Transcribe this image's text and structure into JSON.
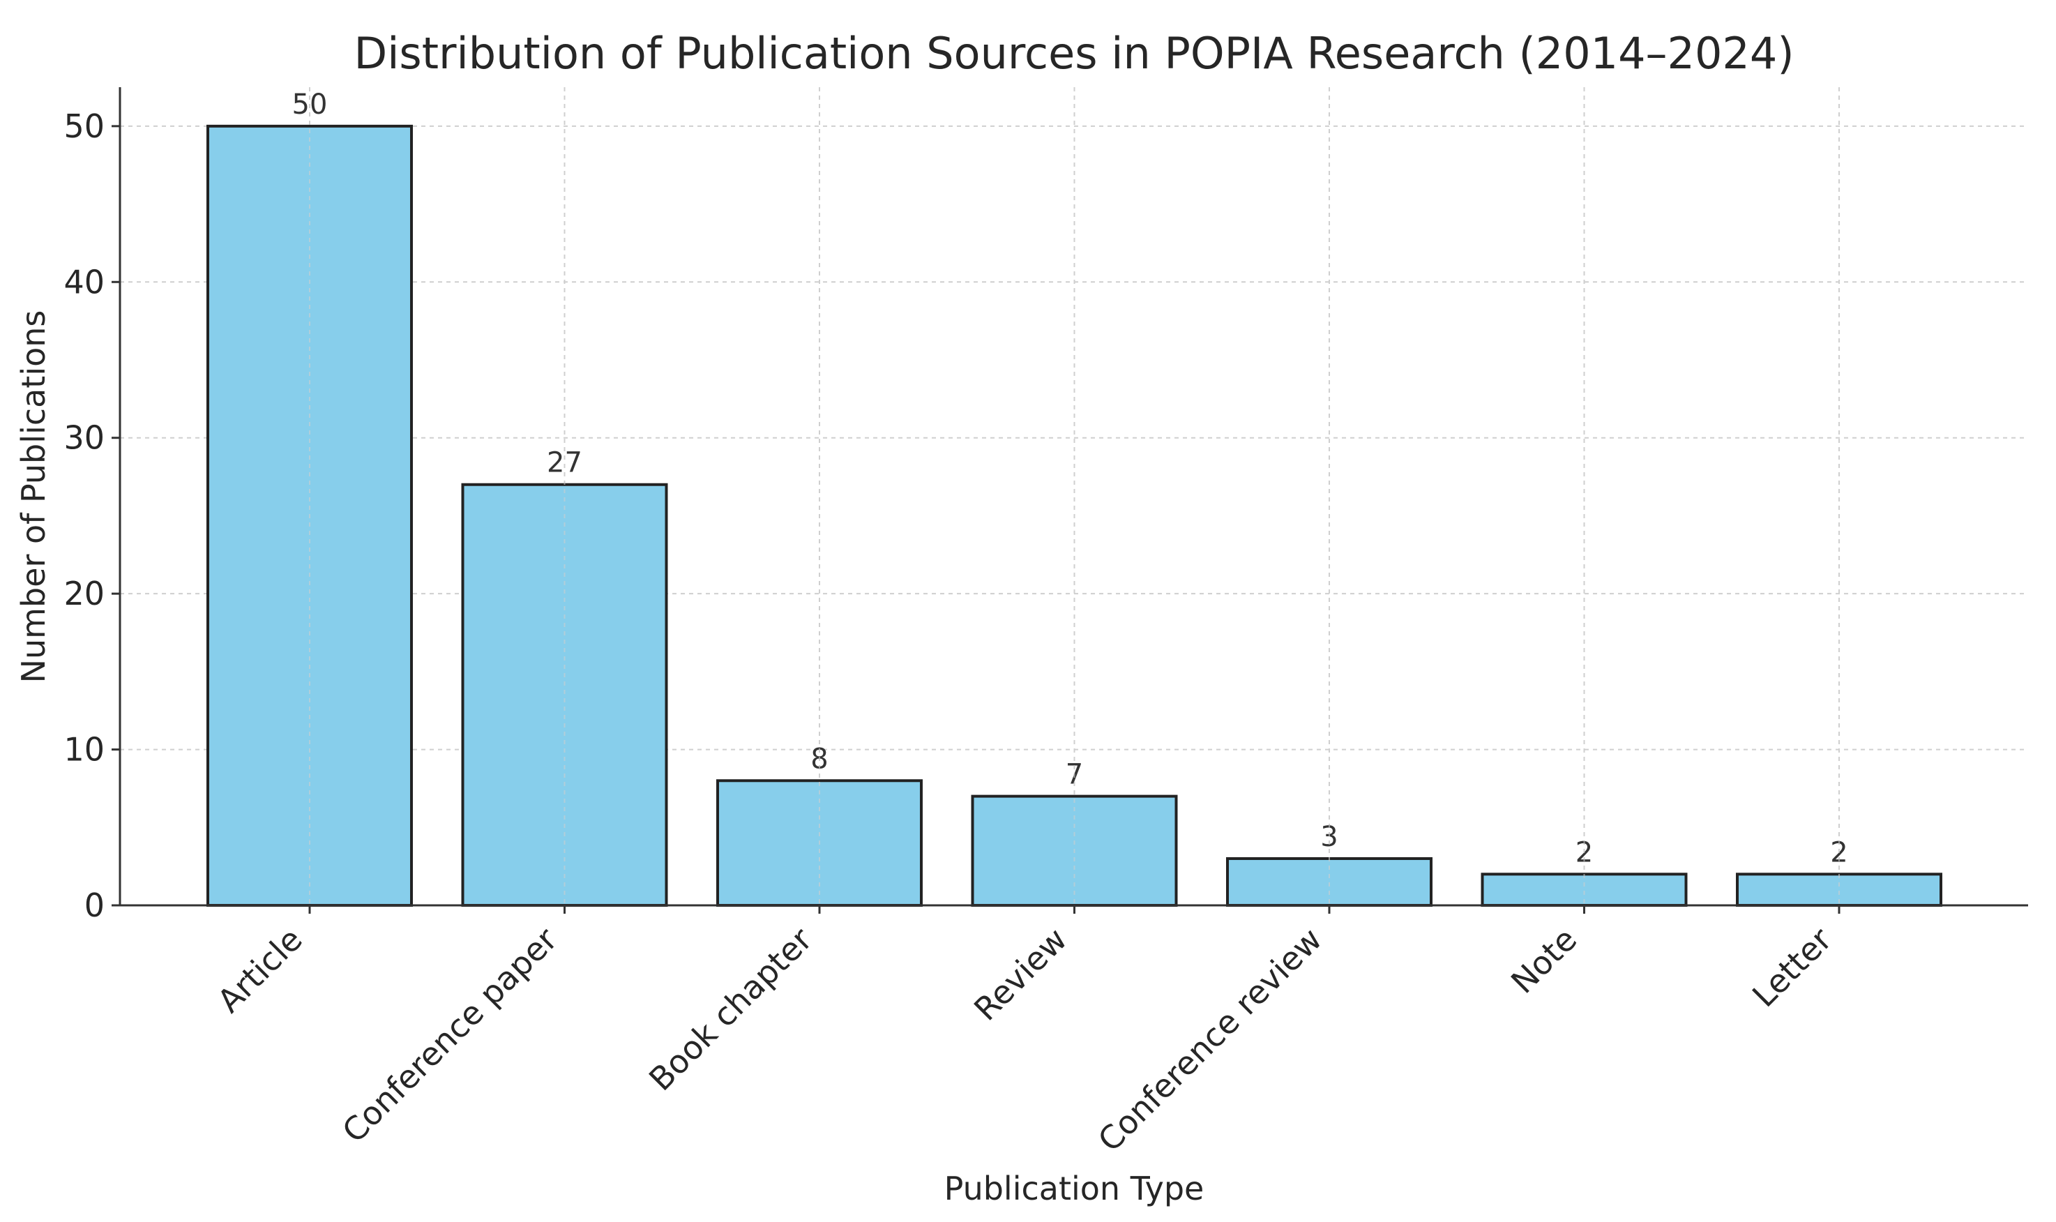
{
  "chart_data": {
    "type": "bar",
    "title": "Distribution of Publication Sources in POPIA Research (2014–2024)",
    "xlabel": "Publication Type",
    "ylabel": "Number of Publications",
    "categories": [
      "Article",
      "Conference paper",
      "Book chapter",
      "Review",
      "Conference review",
      "Note",
      "Letter"
    ],
    "values": [
      50,
      27,
      8,
      7,
      3,
      2,
      2
    ],
    "ylim": [
      0,
      52.5
    ],
    "yticks": [
      0,
      10,
      20,
      30,
      40,
      50
    ],
    "grid": true,
    "bar_color": "#87CEEB",
    "edge_color": "#222222"
  }
}
